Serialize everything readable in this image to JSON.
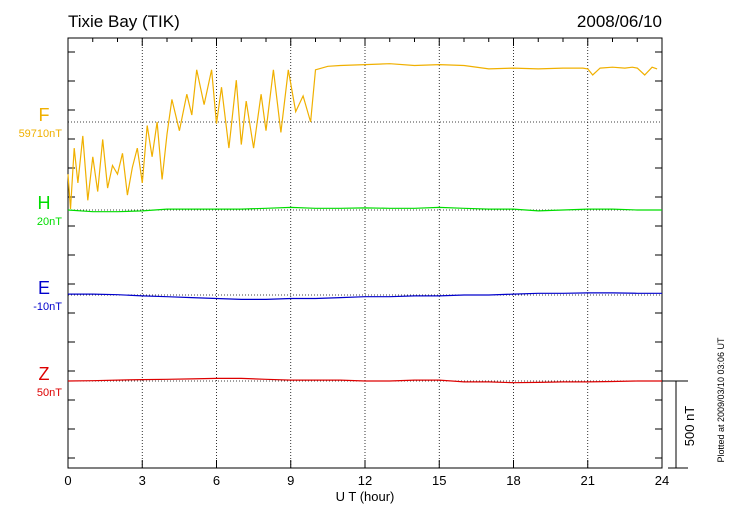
{
  "chart_data": {
    "type": "line",
    "title": "Tixie Bay (TIK)",
    "date": "2008/06/10",
    "xlabel": "U T (hour)",
    "xlim": [
      0,
      24
    ],
    "x_ticks": [
      0,
      3,
      6,
      9,
      12,
      15,
      18,
      21,
      24
    ],
    "x_tick_labels": [
      "0",
      "3",
      "6",
      "9",
      "12",
      "15",
      "18",
      "21",
      "24"
    ],
    "scale_bar_label": "500 nT",
    "plotted_note": "Plotted at 2009/03/10 03:06 UT",
    "grid": true,
    "series": [
      {
        "name": "F",
        "baseline_label": "59710nT",
        "color": "#f0b000",
        "x": [
          0,
          0.1,
          0.25,
          0.4,
          0.6,
          0.8,
          1.0,
          1.2,
          1.4,
          1.6,
          1.8,
          2.0,
          2.2,
          2.4,
          2.6,
          2.8,
          3.0,
          3.2,
          3.4,
          3.6,
          3.8,
          4.0,
          4.2,
          4.5,
          4.8,
          5.0,
          5.2,
          5.5,
          5.8,
          6.0,
          6.2,
          6.5,
          6.8,
          7.0,
          7.2,
          7.5,
          7.8,
          8.0,
          8.3,
          8.6,
          8.9,
          9.2,
          9.5,
          9.8,
          10.0,
          10.5,
          11.0,
          12.0,
          13.0,
          14.0,
          15.0,
          16.0,
          17.0,
          18.0,
          19.0,
          20.0,
          20.8,
          21.0,
          21.2,
          21.5,
          22.0,
          22.5,
          22.8,
          23.0,
          23.3,
          23.6,
          23.8
        ],
        "values": [
          -300,
          -500,
          -150,
          -350,
          -80,
          -450,
          -200,
          -400,
          -100,
          -380,
          -250,
          -300,
          -180,
          -420,
          -260,
          -150,
          -350,
          -20,
          -200,
          0,
          -330,
          -70,
          130,
          -50,
          160,
          40,
          300,
          100,
          300,
          -10,
          200,
          -150,
          240,
          -130,
          120,
          -150,
          160,
          -50,
          300,
          -60,
          300,
          60,
          150,
          0,
          300,
          320,
          325,
          330,
          335,
          325,
          330,
          325,
          305,
          310,
          305,
          310,
          310,
          305,
          270,
          310,
          315,
          310,
          315,
          310,
          270,
          315,
          305
        ]
      },
      {
        "name": "H",
        "baseline_label": "20nT",
        "color": "#00dd00",
        "x": [
          0,
          1,
          2,
          3,
          4,
          5,
          6,
          7,
          8,
          9,
          10,
          11,
          12,
          13,
          14,
          15,
          16,
          17,
          18,
          19,
          20,
          21,
          22,
          23,
          24
        ],
        "values": [
          0,
          -10,
          -10,
          -5,
          5,
          5,
          5,
          5,
          10,
          15,
          10,
          10,
          12,
          10,
          10,
          15,
          10,
          5,
          5,
          -5,
          0,
          5,
          5,
          0,
          0
        ]
      },
      {
        "name": "E",
        "baseline_label": "-10nT",
        "color": "#0000cc",
        "x": [
          0,
          1,
          2,
          3,
          4,
          5,
          6,
          7,
          8,
          9,
          10,
          11,
          12,
          13,
          14,
          15,
          16,
          17,
          18,
          19,
          20,
          21,
          22,
          23,
          24
        ],
        "values": [
          5,
          5,
          2,
          -5,
          -10,
          -15,
          -20,
          -25,
          -25,
          -20,
          -20,
          -15,
          -10,
          -10,
          -5,
          -5,
          0,
          0,
          5,
          10,
          10,
          12,
          12,
          10,
          10
        ]
      },
      {
        "name": "Z",
        "baseline_label": "50nT",
        "color": "#dd0000",
        "x": [
          0,
          1,
          2,
          3,
          4,
          5,
          6,
          7,
          8,
          9,
          10,
          11,
          12,
          13,
          14,
          15,
          16,
          17,
          18,
          19,
          20,
          21,
          22,
          23,
          24
        ],
        "values": [
          0,
          2,
          5,
          8,
          10,
          12,
          15,
          15,
          10,
          5,
          5,
          5,
          0,
          0,
          5,
          5,
          -5,
          -5,
          -10,
          -8,
          -5,
          -5,
          -3,
          0,
          0
        ]
      }
    ]
  }
}
